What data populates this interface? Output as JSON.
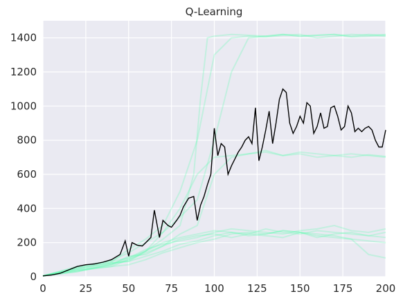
{
  "chart_data": {
    "type": "line",
    "title": "Q-Learning",
    "xlabel": "",
    "ylabel": "",
    "xlim": [
      0,
      200
    ],
    "ylim": [
      0,
      1500
    ],
    "x_ticks": [
      0,
      25,
      50,
      75,
      100,
      125,
      150,
      175,
      200
    ],
    "y_ticks": [
      0,
      200,
      400,
      600,
      800,
      1000,
      1200,
      1400
    ],
    "grid": true,
    "legend": "none",
    "background_color": "#eaeaf2",
    "mean_color": "#000000",
    "run_color": "#4dffa6",
    "mean_series": {
      "x": [
        0,
        5,
        10,
        15,
        20,
        25,
        30,
        35,
        40,
        45,
        48,
        50,
        52,
        55,
        58,
        60,
        63,
        65,
        68,
        70,
        73,
        75,
        78,
        80,
        82,
        85,
        88,
        90,
        92,
        94,
        96,
        98,
        100,
        102,
        104,
        106,
        108,
        110,
        112,
        114,
        116,
        118,
        120,
        122,
        124,
        126,
        128,
        130,
        132,
        134,
        136,
        138,
        140,
        142,
        144,
        146,
        148,
        150,
        152,
        154,
        156,
        158,
        160,
        162,
        164,
        166,
        168,
        170,
        172,
        174,
        176,
        178,
        180,
        182,
        184,
        186,
        188,
        190,
        192,
        194,
        196,
        198,
        200
      ],
      "y": [
        5,
        10,
        20,
        40,
        60,
        70,
        75,
        85,
        100,
        130,
        210,
        120,
        200,
        185,
        180,
        200,
        230,
        390,
        230,
        330,
        300,
        290,
        330,
        360,
        410,
        460,
        470,
        330,
        420,
        470,
        540,
        600,
        870,
        710,
        780,
        760,
        600,
        650,
        690,
        730,
        760,
        800,
        820,
        780,
        990,
        680,
        760,
        860,
        970,
        780,
        900,
        1040,
        1100,
        1080,
        900,
        840,
        880,
        940,
        900,
        1020,
        1000,
        840,
        880,
        960,
        870,
        880,
        990,
        1000,
        940,
        860,
        880,
        1000,
        960,
        850,
        870,
        850,
        870,
        880,
        860,
        800,
        760,
        760,
        860
      ]
    },
    "runs": [
      {
        "x": [
          0,
          20,
          40,
          50,
          60,
          70,
          80,
          88,
          92,
          96,
          100,
          110,
          120,
          130,
          140,
          150,
          160,
          170,
          180,
          190,
          200
        ],
        "y": [
          5,
          50,
          80,
          90,
          150,
          220,
          300,
          600,
          1050,
          1400,
          1410,
          1420,
          1415,
          1410,
          1420,
          1410,
          1415,
          1420,
          1410,
          1420,
          1415
        ]
      },
      {
        "x": [
          0,
          20,
          40,
          50,
          60,
          70,
          80,
          90,
          100,
          110,
          120,
          130,
          140,
          150,
          160,
          170,
          180,
          190,
          200
        ],
        "y": [
          5,
          40,
          60,
          100,
          150,
          200,
          230,
          250,
          270,
          260,
          240,
          250,
          270,
          260,
          230,
          250,
          260,
          240,
          230
        ]
      },
      {
        "x": [
          0,
          20,
          40,
          50,
          60,
          70,
          80,
          90,
          100,
          110,
          120,
          130,
          140,
          150,
          160,
          170,
          180,
          190,
          200
        ],
        "y": [
          5,
          30,
          70,
          120,
          130,
          180,
          220,
          240,
          250,
          230,
          250,
          280,
          260,
          250,
          270,
          260,
          250,
          240,
          260
        ]
      },
      {
        "x": [
          0,
          20,
          40,
          50,
          60,
          70,
          80,
          90,
          100,
          110,
          120,
          130,
          140,
          150,
          160,
          170,
          180,
          190,
          200
        ],
        "y": [
          5,
          60,
          90,
          110,
          160,
          190,
          210,
          230,
          260,
          280,
          270,
          260,
          250,
          270,
          280,
          300,
          270,
          260,
          280
        ]
      },
      {
        "x": [
          0,
          20,
          40,
          50,
          60,
          70,
          80,
          90,
          100,
          110,
          120,
          130,
          140,
          150,
          160,
          170,
          180,
          190,
          200
        ],
        "y": [
          5,
          45,
          80,
          90,
          120,
          150,
          190,
          210,
          240,
          260,
          250,
          240,
          230,
          260,
          240,
          230,
          220,
          210,
          200
        ]
      },
      {
        "x": [
          0,
          20,
          40,
          50,
          60,
          70,
          80,
          90,
          100,
          110,
          120,
          130,
          140,
          150,
          160,
          170,
          180,
          190,
          200
        ],
        "y": [
          5,
          35,
          60,
          70,
          100,
          140,
          170,
          200,
          220,
          250,
          260,
          250,
          270,
          260,
          250,
          240,
          220,
          130,
          110
        ]
      },
      {
        "x": [
          0,
          20,
          40,
          50,
          60,
          70,
          80,
          90,
          100,
          110,
          120,
          130,
          140,
          150,
          160,
          170,
          180,
          190,
          200
        ],
        "y": [
          5,
          55,
          95,
          140,
          200,
          260,
          400,
          600,
          700,
          710,
          720,
          730,
          710,
          720,
          700,
          710,
          720,
          710,
          700
        ]
      },
      {
        "x": [
          0,
          20,
          40,
          50,
          60,
          70,
          80,
          90,
          100,
          110,
          120,
          130,
          140,
          150,
          160,
          170,
          180,
          190,
          200
        ],
        "y": [
          5,
          50,
          85,
          160,
          220,
          300,
          500,
          800,
          1300,
          1400,
          1410,
          1405,
          1415,
          1420,
          1400,
          1410,
          1420,
          1415,
          1410
        ]
      },
      {
        "x": [
          0,
          20,
          40,
          50,
          60,
          70,
          80,
          90,
          100,
          110,
          120,
          130,
          140,
          150,
          160,
          170,
          180,
          190,
          200
        ],
        "y": [
          5,
          40,
          70,
          100,
          140,
          180,
          250,
          300,
          600,
          700,
          720,
          740,
          710,
          730,
          720,
          710,
          700,
          715,
          705
        ]
      },
      {
        "x": [
          0,
          20,
          40,
          50,
          60,
          70,
          80,
          90,
          100,
          110,
          120,
          130,
          140,
          150,
          160,
          170,
          180,
          190,
          200
        ],
        "y": [
          5,
          30,
          75,
          110,
          150,
          260,
          350,
          450,
          800,
          1200,
          1400,
          1410,
          1420,
          1410,
          1415,
          1420,
          1405,
          1410,
          1420
        ]
      }
    ]
  }
}
